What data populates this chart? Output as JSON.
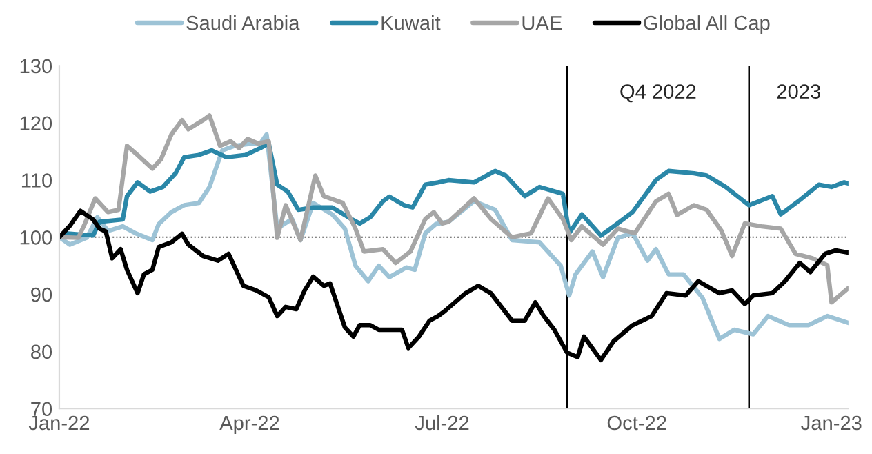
{
  "chart_data": {
    "type": "line",
    "xlim": [
      "2022-01-01",
      "2023-01-09"
    ],
    "xticks": [
      {
        "value": "2022-01-01",
        "label": "Jan-22"
      },
      {
        "value": "2022-04-01",
        "label": "Apr-22"
      },
      {
        "value": "2022-07-01",
        "label": "Jul-22"
      },
      {
        "value": "2022-10-01",
        "label": "Oct-22"
      },
      {
        "value": "2023-01-01",
        "label": "Jan-23"
      }
    ],
    "ylim": [
      70,
      130
    ],
    "yticks": [
      70,
      80,
      90,
      100,
      110,
      120,
      130
    ],
    "grid": false,
    "legend": "top",
    "line_style": "solid",
    "marker": "none",
    "ref_lines": [
      {
        "axis": "y",
        "value": 100,
        "color": "#595959",
        "line_style": "dotted"
      },
      {
        "axis": "x",
        "value": "2022-08-29",
        "label": "Q4 2022",
        "color": "#000000",
        "line_style": "solid"
      },
      {
        "axis": "x",
        "value": "2022-11-23",
        "label": "2023",
        "color": "#000000",
        "line_style": "solid"
      }
    ],
    "series": [
      {
        "name": "Saudi Arabia",
        "color": "#9dc3d6",
        "x": [
          "2022-01-01",
          "2022-01-06",
          "2022-01-14",
          "2022-01-19",
          "2022-01-24",
          "2022-01-31",
          "2022-02-06",
          "2022-02-14",
          "2022-02-17",
          "2022-02-23",
          "2022-03-01",
          "2022-03-08",
          "2022-03-13",
          "2022-03-19",
          "2022-03-25",
          "2022-04-02",
          "2022-04-06",
          "2022-04-09",
          "2022-04-14",
          "2022-04-21",
          "2022-04-25",
          "2022-05-01",
          "2022-05-10",
          "2022-05-16",
          "2022-05-21",
          "2022-05-27",
          "2022-06-01",
          "2022-06-06",
          "2022-06-14",
          "2022-06-18",
          "2022-06-23",
          "2022-06-28",
          "2022-07-04",
          "2022-07-16",
          "2022-07-26",
          "2022-08-03",
          "2022-08-16",
          "2022-08-26",
          "2022-08-30",
          "2022-09-02",
          "2022-09-10",
          "2022-09-15",
          "2022-09-22",
          "2022-09-29",
          "2022-10-06",
          "2022-10-10",
          "2022-10-16",
          "2022-10-23",
          "2022-11-01",
          "2022-11-09",
          "2022-11-16",
          "2022-11-25",
          "2022-12-02",
          "2022-12-12",
          "2022-12-21",
          "2022-12-30",
          "2023-01-09"
        ],
        "values": [
          100,
          98.7,
          99.9,
          103.5,
          101.1,
          101.9,
          100.7,
          99.5,
          102.3,
          104.4,
          105.6,
          106,
          108.8,
          115.2,
          116,
          116.4,
          116.4,
          118,
          101.5,
          103.2,
          99.5,
          106,
          104,
          101.5,
          95,
          92.3,
          95,
          93,
          94.7,
          94.3,
          100.7,
          102.3,
          102.7,
          106.3,
          104.8,
          99.5,
          99.1,
          95,
          89.8,
          93.5,
          97.5,
          93,
          99.9,
          100.7,
          95.9,
          97.9,
          93.5,
          93.5,
          89.4,
          82.2,
          83.8,
          83,
          86.2,
          84.6,
          84.6,
          86.2,
          85
        ]
      },
      {
        "name": "Kuwait",
        "color": "#2a87a8",
        "x": [
          "2022-01-01",
          "2022-01-03",
          "2022-01-17",
          "2022-01-20",
          "2022-01-31",
          "2022-02-02",
          "2022-02-07",
          "2022-02-13",
          "2022-02-19",
          "2022-02-25",
          "2022-03-01",
          "2022-03-08",
          "2022-03-14",
          "2022-03-21",
          "2022-03-30",
          "2022-04-06",
          "2022-04-10",
          "2022-04-14",
          "2022-04-19",
          "2022-04-24",
          "2022-05-01",
          "2022-05-10",
          "2022-05-19",
          "2022-05-23",
          "2022-05-28",
          "2022-06-03",
          "2022-06-06",
          "2022-06-13",
          "2022-06-17",
          "2022-06-23",
          "2022-06-29",
          "2022-07-04",
          "2022-07-16",
          "2022-07-26",
          "2022-07-31",
          "2022-08-09",
          "2022-08-16",
          "2022-08-27",
          "2022-08-30",
          "2022-09-05",
          "2022-09-14",
          "2022-09-20",
          "2022-09-29",
          "2022-10-10",
          "2022-10-16",
          "2022-10-28",
          "2022-11-03",
          "2022-11-12",
          "2022-11-23",
          "2022-12-04",
          "2022-12-08",
          "2022-12-17",
          "2022-12-26",
          "2023-01-01",
          "2023-01-07",
          "2023-01-09"
        ],
        "values": [
          100,
          100.7,
          100.3,
          102.7,
          103.1,
          107.2,
          109.6,
          108,
          108.8,
          111.2,
          114,
          114.4,
          115.2,
          114,
          114.4,
          115.6,
          116.4,
          109.2,
          108,
          104.8,
          105.2,
          105.2,
          103.2,
          102.4,
          103.5,
          106.3,
          107.1,
          105.6,
          105.2,
          109.2,
          109.6,
          110,
          109.6,
          111.6,
          110.8,
          107.2,
          108.8,
          107.6,
          100.7,
          104,
          100.3,
          101.9,
          104.4,
          110,
          111.6,
          111.2,
          110.8,
          108.8,
          105.6,
          107.2,
          104,
          106.5,
          109.2,
          108.8,
          109.6,
          109.4
        ]
      },
      {
        "name": "UAE",
        "color": "#a6a6a6",
        "x": [
          "2022-01-01",
          "2022-01-10",
          "2022-01-13",
          "2022-01-18",
          "2022-01-24",
          "2022-01-29",
          "2022-02-02",
          "2022-02-07",
          "2022-02-14",
          "2022-02-18",
          "2022-02-23",
          "2022-02-28",
          "2022-03-03",
          "2022-03-10",
          "2022-03-13",
          "2022-03-18",
          "2022-03-23",
          "2022-03-27",
          "2022-03-31",
          "2022-04-05",
          "2022-04-10",
          "2022-04-14",
          "2022-04-18",
          "2022-04-25",
          "2022-05-02",
          "2022-05-06",
          "2022-05-15",
          "2022-05-21",
          "2022-05-25",
          "2022-06-03",
          "2022-06-09",
          "2022-06-16",
          "2022-06-23",
          "2022-06-27",
          "2022-07-01",
          "2022-07-04",
          "2022-07-16",
          "2022-07-24",
          "2022-08-03",
          "2022-08-12",
          "2022-08-20",
          "2022-08-27",
          "2022-08-31",
          "2022-09-05",
          "2022-09-15",
          "2022-09-22",
          "2022-09-30",
          "2022-10-10",
          "2022-10-16",
          "2022-10-20",
          "2022-10-28",
          "2022-11-03",
          "2022-11-10",
          "2022-11-15",
          "2022-11-21",
          "2022-11-29",
          "2022-12-08",
          "2022-12-15",
          "2022-12-23",
          "2022-12-30",
          "2023-01-01",
          "2023-01-09"
        ],
        "values": [
          100,
          99.9,
          102.3,
          106.8,
          104.4,
          104.8,
          116,
          114.4,
          112,
          113.6,
          118,
          120.5,
          118.9,
          120.5,
          121.3,
          116,
          116.8,
          115.6,
          117.2,
          116.4,
          116.8,
          99.9,
          105.6,
          99.5,
          110.8,
          107.2,
          106,
          101.5,
          97.5,
          97.9,
          95.5,
          97.5,
          103.2,
          104.4,
          102.4,
          102.7,
          106.8,
          103.2,
          100,
          100.7,
          106.8,
          103.2,
          99.5,
          101.9,
          98.7,
          101.5,
          100.7,
          106.3,
          107.6,
          103.9,
          105.6,
          104.8,
          101.1,
          96.7,
          102.4,
          101.9,
          101.5,
          97.1,
          96.3,
          95.1,
          88.6,
          91.1
        ]
      },
      {
        "name": "Global All Cap",
        "color": "#000000",
        "x": [
          "2022-01-01",
          "2022-01-06",
          "2022-01-11",
          "2022-01-17",
          "2022-01-20",
          "2022-01-23",
          "2022-01-26",
          "2022-01-30",
          "2022-02-02",
          "2022-02-07",
          "2022-02-10",
          "2022-02-14",
          "2022-02-17",
          "2022-02-23",
          "2022-02-28",
          "2022-03-03",
          "2022-03-10",
          "2022-03-17",
          "2022-03-22",
          "2022-03-29",
          "2022-04-04",
          "2022-04-10",
          "2022-04-14",
          "2022-04-18",
          "2022-04-23",
          "2022-04-27",
          "2022-05-01",
          "2022-05-06",
          "2022-05-09",
          "2022-05-16",
          "2022-05-20",
          "2022-05-23",
          "2022-05-28",
          "2022-06-01",
          "2022-06-06",
          "2022-06-12",
          "2022-06-15",
          "2022-06-20",
          "2022-06-25",
          "2022-06-29",
          "2022-07-02",
          "2022-07-12",
          "2022-07-18",
          "2022-07-24",
          "2022-08-03",
          "2022-08-09",
          "2022-08-14",
          "2022-08-18",
          "2022-08-23",
          "2022-08-29",
          "2022-09-03",
          "2022-09-06",
          "2022-09-14",
          "2022-09-20",
          "2022-09-29",
          "2022-10-08",
          "2022-10-15",
          "2022-10-24",
          "2022-10-30",
          "2022-11-09",
          "2022-11-15",
          "2022-11-21",
          "2022-11-25",
          "2022-12-04",
          "2022-12-10",
          "2022-12-17",
          "2022-12-22",
          "2022-12-29",
          "2023-01-03",
          "2023-01-09"
        ],
        "values": [
          100,
          102,
          104.6,
          103.1,
          101.5,
          101,
          96.3,
          97.9,
          94.3,
          90.2,
          93.5,
          94.3,
          98.3,
          99.1,
          100.6,
          98.7,
          96.7,
          95.9,
          97.1,
          91.5,
          90.7,
          89.5,
          86.2,
          87.8,
          87.4,
          90.7,
          93.1,
          91.5,
          91.9,
          84.2,
          82.6,
          84.6,
          84.6,
          83.8,
          83.8,
          83.8,
          80.6,
          82.6,
          85.4,
          86.2,
          87,
          90.2,
          91.5,
          90.2,
          85.4,
          85.4,
          88.6,
          86.2,
          83.8,
          79.8,
          79,
          82.6,
          78.5,
          81.8,
          84.6,
          86.2,
          90.2,
          89.8,
          92.3,
          90.2,
          90.7,
          88.3,
          89.8,
          90.2,
          92.3,
          95.5,
          93.9,
          97.1,
          97.7,
          97.3
        ]
      }
    ]
  }
}
